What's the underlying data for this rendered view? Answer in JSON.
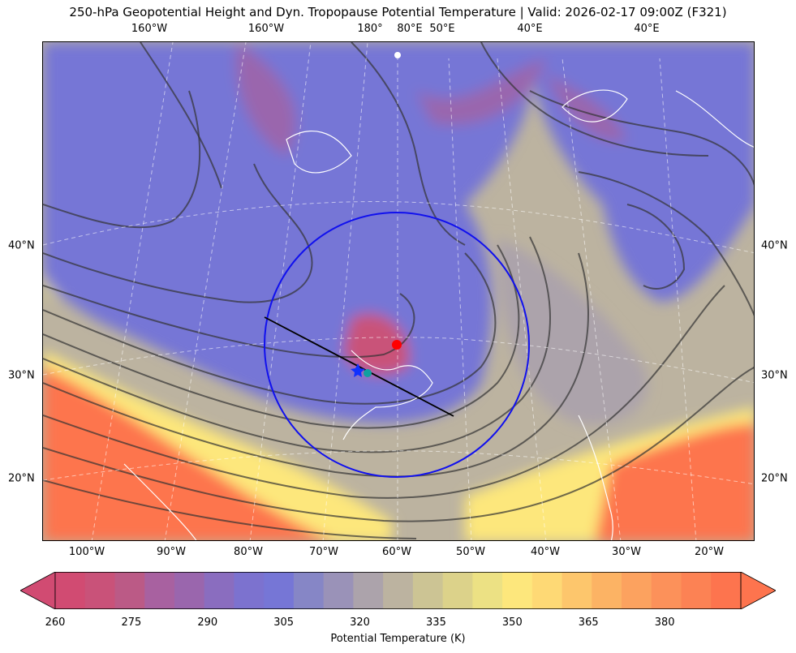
{
  "title": "250-hPa Geopotential Height and Dyn. Tropopause Potential Temperature   |  Valid: 2026-02-17 09:00Z (F321)",
  "top_lon_labels": [
    "160°W",
    "160°W",
    "180°",
    "80°E",
    "50°E",
    "40°E",
    "40°E"
  ],
  "bottom_lon_labels": [
    "100°W",
    "90°W",
    "80°W",
    "70°W",
    "60°W",
    "50°W",
    "40°W",
    "30°W",
    "20°W"
  ],
  "left_lat_labels": [
    "40°N",
    "30°N",
    "20°N"
  ],
  "right_lat_labels": [
    "40°N",
    "30°N",
    "20°N"
  ],
  "colorbar": {
    "label": "Potential Temperature (K)",
    "ticks": [
      "260",
      "275",
      "290",
      "305",
      "320",
      "335",
      "350",
      "365",
      "380"
    ],
    "colors": [
      "#d14b72",
      "#c95279",
      "#bb5a86",
      "#a861a0",
      "#9a66ad",
      "#8a6dbf",
      "#7c72cf",
      "#7676d6",
      "#8686c6",
      "#9a92b8",
      "#aca3ab",
      "#bcb3a0",
      "#ccc494",
      "#dcd28a",
      "#ece184",
      "#fde77c",
      "#fed975",
      "#fdc66c",
      "#fcb364",
      "#fca25f",
      "#fc915a",
      "#fc8254",
      "#fd744e"
    ],
    "extend": "both"
  },
  "map_colors": {
    "warm": "#fd744e",
    "yellow": "#fde77c",
    "khaki": "#bcb3a0",
    "blue": "#7676d6",
    "purple": "#9a66ad",
    "magenta": "#c95279",
    "circle": "#1010ee",
    "cross_section_line": "#000000",
    "marker_red": "#ff0000",
    "marker_blue": "#1030ff",
    "marker_cyan": "#10a0a0"
  }
}
